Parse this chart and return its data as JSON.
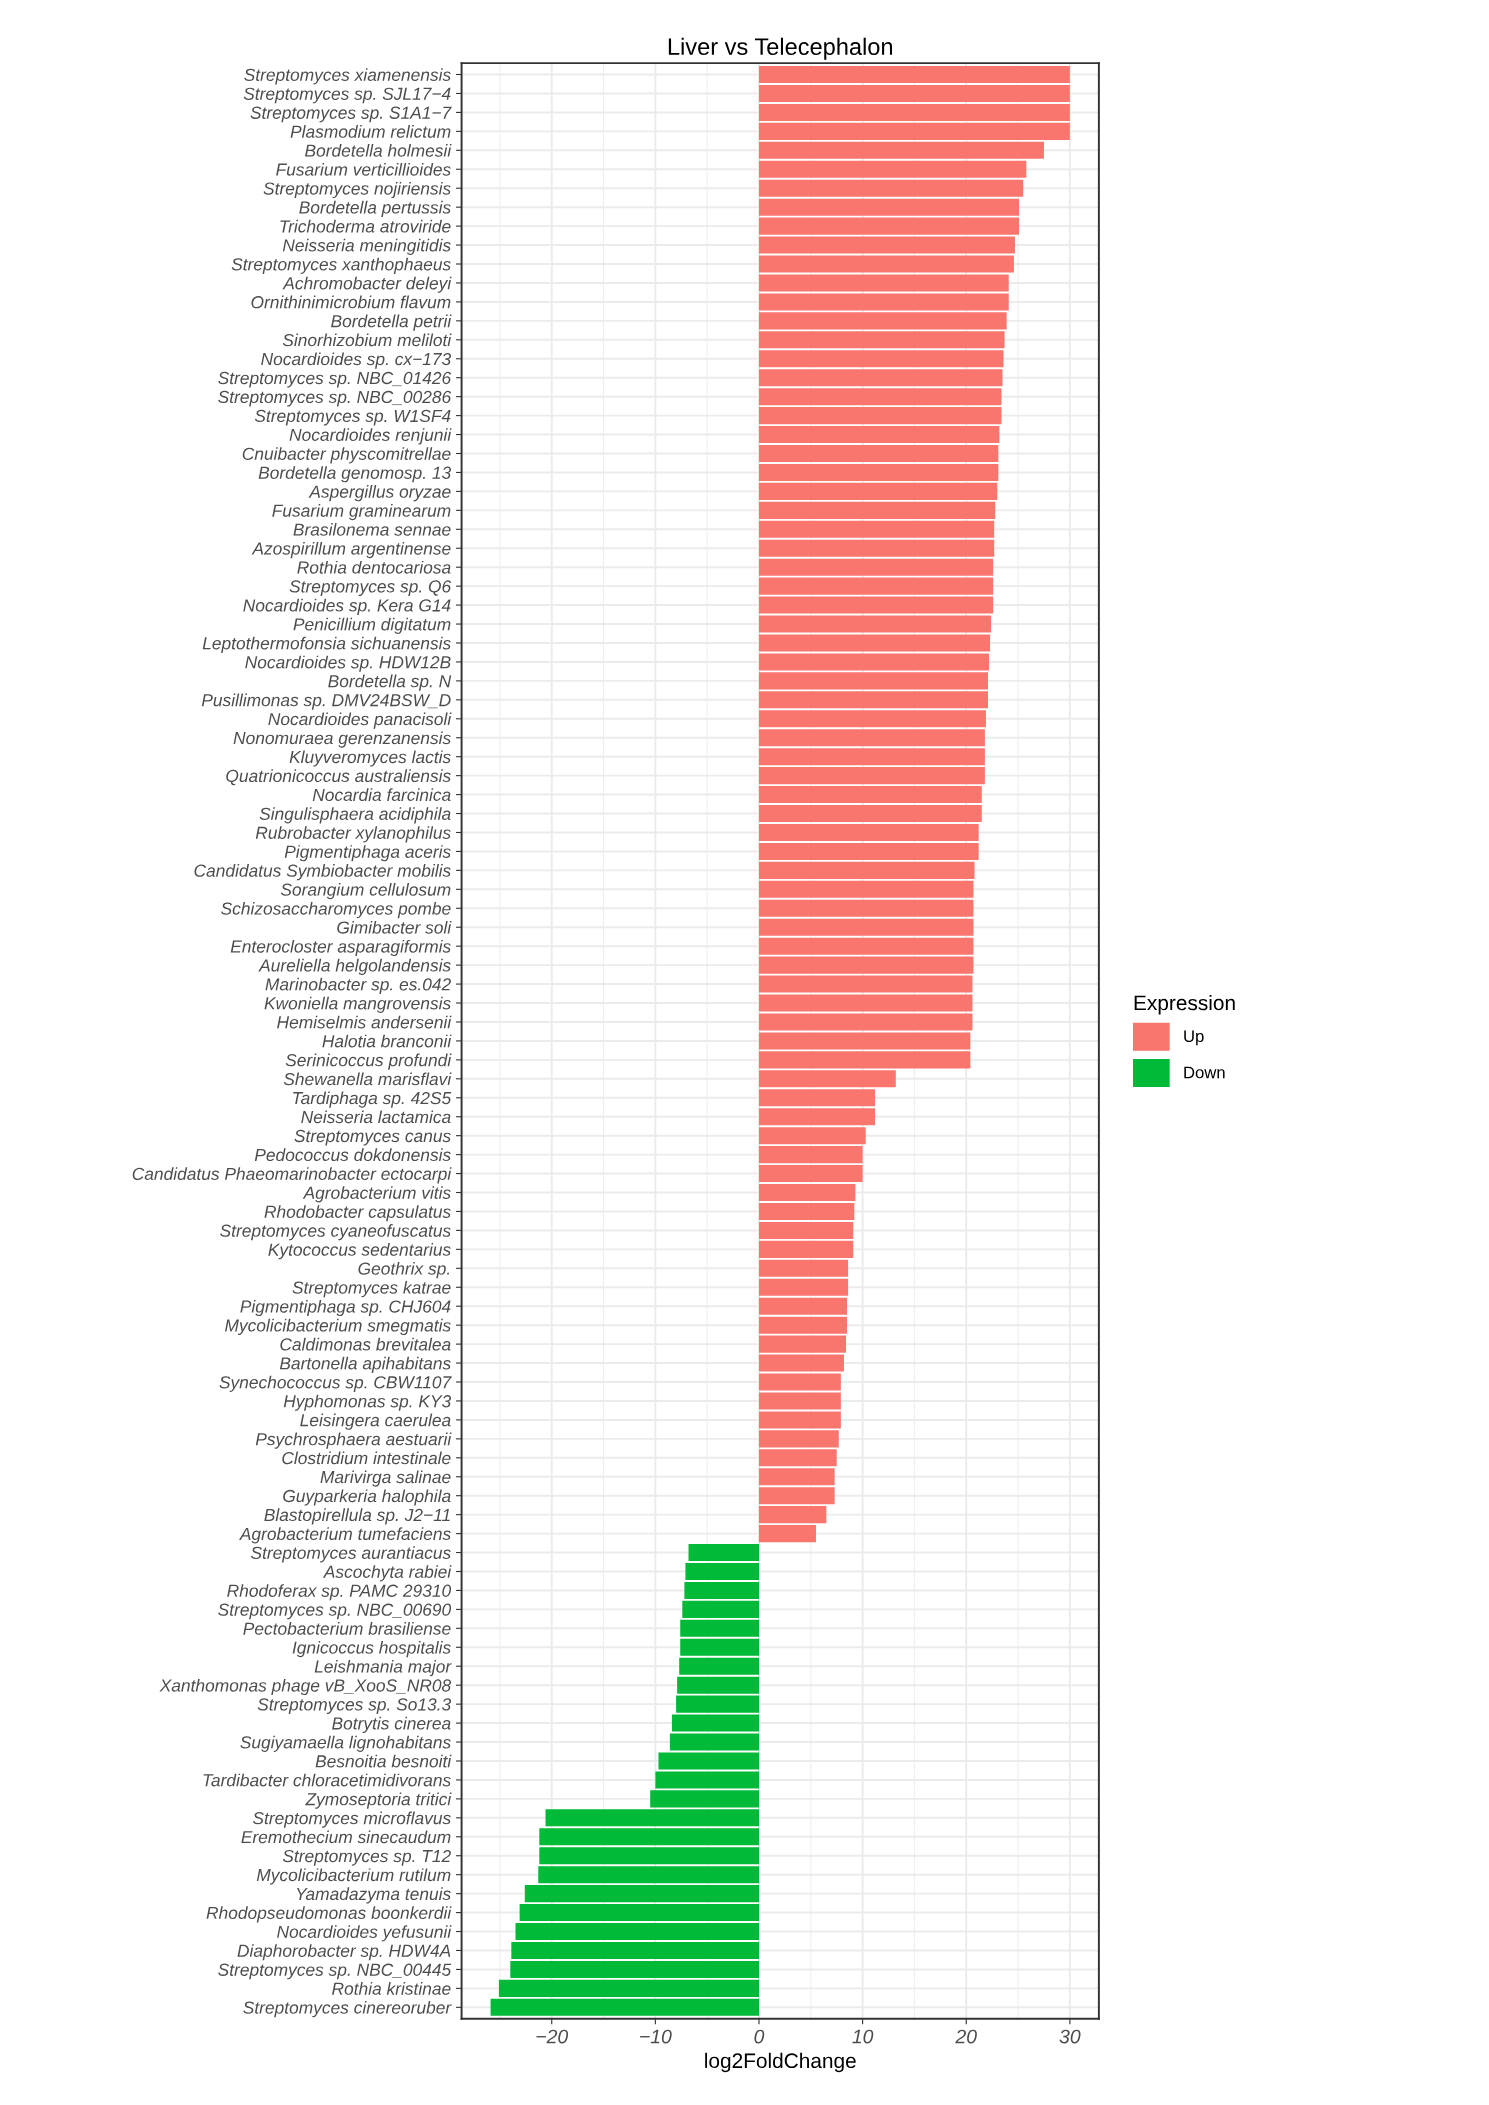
{
  "chart_data": {
    "type": "bar",
    "orientation": "horizontal",
    "title": "Liver vs Telecephalon",
    "xlabel": "log2FoldChange",
    "legend_title": "Expression",
    "legend": "right",
    "grid": true,
    "categories": [
      "Streptomyces xiamenensis",
      "Streptomyces sp. SJL17−4",
      "Streptomyces sp. S1A1−7",
      "Plasmodium relictum",
      "Bordetella holmesii",
      "Fusarium verticillioides",
      "Streptomyces nojiriensis",
      "Bordetella pertussis",
      "Trichoderma atroviride",
      "Neisseria meningitidis",
      "Streptomyces xanthophaeus",
      "Achromobacter deleyi",
      "Ornithinimicrobium flavum",
      "Bordetella petrii",
      "Sinorhizobium meliloti",
      "Nocardioides sp. cx−173",
      "Streptomyces sp. NBC_01426",
      "Streptomyces sp. NBC_00286",
      "Streptomyces sp. W1SF4",
      "Nocardioides renjunii",
      "Cnuibacter physcomitrellae",
      "Bordetella genomosp. 13",
      "Aspergillus oryzae",
      "Fusarium graminearum",
      "Brasilonema sennae",
      "Azospirillum argentinense",
      "Rothia dentocariosa",
      "Streptomyces sp. Q6",
      "Nocardioides sp. Kera G14",
      "Penicillium digitatum",
      "Leptothermofonsia sichuanensis",
      "Nocardioides sp. HDW12B",
      "Bordetella sp. N",
      "Pusillimonas sp. DMV24BSW_D",
      "Nocardioides panacisoli",
      "Nonomuraea gerenzanensis",
      "Kluyveromyces lactis",
      "Quatrionicoccus australiensis",
      "Nocardia farcinica",
      "Singulisphaera acidiphila",
      "Rubrobacter xylanophilus",
      "Pigmentiphaga aceris",
      "Candidatus Symbiobacter mobilis",
      "Sorangium cellulosum",
      "Schizosaccharomyces pombe",
      "Gimibacter soli",
      "Enterocloster asparagiformis",
      "Aureliella helgolandensis",
      "Marinobacter sp. es.042",
      "Kwoniella mangrovensis",
      "Hemiselmis andersenii",
      "Halotia branconii",
      "Serinicoccus profundi",
      "Shewanella marisflavi",
      "Tardiphaga sp. 42S5",
      "Neisseria lactamica",
      "Streptomyces canus",
      "Pedococcus dokdonensis",
      "Candidatus Phaeomarinobacter ectocarpi",
      "Agrobacterium vitis",
      "Rhodobacter capsulatus",
      "Streptomyces cyaneofuscatus",
      "Kytococcus sedentarius",
      "Geothrix sp.",
      "Streptomyces katrae",
      "Pigmentiphaga sp. CHJ604",
      "Mycolicibacterium smegmatis",
      "Caldimonas brevitalea",
      "Bartonella apihabitans",
      "Synechococcus sp. CBW1107",
      "Hyphomonas sp. KY3",
      "Leisingera caerulea",
      "Psychrosphaera aestuarii",
      "Clostridium intestinale",
      "Marivirga salinae",
      "Guyparkeria halophila",
      "Blastopirellula sp. J2−11",
      "Agrobacterium tumefaciens",
      "Streptomyces aurantiacus",
      "Ascochyta rabiei",
      "Rhodoferax sp. PAMC 29310",
      "Streptomyces sp. NBC_00690",
      "Pectobacterium brasiliense",
      "Ignicoccus hospitalis",
      "Leishmania major",
      "Xanthomonas phage vB_XooS_NR08",
      "Streptomyces sp. So13.3",
      "Botrytis cinerea",
      "Sugiyamaella lignohabitans",
      "Besnoitia besnoiti",
      "Tardibacter chloracetimidivorans",
      "Zymoseptoria tritici",
      "Streptomyces microflavus",
      "Eremothecium sinecaudum",
      "Streptomyces sp. T12",
      "Mycolicibacterium rutilum",
      "Yamadazyma tenuis",
      "Rhodopseudomonas boonkerdii",
      "Nocardioides yefusunii",
      "Diaphorobacter sp. HDW4A",
      "Streptomyces sp. NBC_00445",
      "Rothia kristinae",
      "Streptomyces cinereoruber"
    ],
    "series": [
      {
        "name": "Up",
        "color": "#f8766d",
        "values": [
          30.0,
          30.0,
          30.0,
          30.0,
          27.5,
          25.8,
          25.5,
          25.1,
          25.1,
          24.7,
          24.6,
          24.1,
          24.1,
          23.9,
          23.7,
          23.6,
          23.5,
          23.4,
          23.4,
          23.2,
          23.1,
          23.1,
          23.0,
          22.8,
          22.7,
          22.7,
          22.6,
          22.6,
          22.6,
          22.4,
          22.3,
          22.2,
          22.1,
          22.1,
          21.9,
          21.8,
          21.8,
          21.8,
          21.5,
          21.5,
          21.2,
          21.2,
          20.8,
          20.7,
          20.7,
          20.7,
          20.7,
          20.7,
          20.6,
          20.6,
          20.6,
          20.4,
          20.4,
          13.2,
          11.2,
          11.2,
          10.3,
          10.0,
          10.0,
          9.3,
          9.2,
          9.1,
          9.1,
          8.6,
          8.6,
          8.5,
          8.5,
          8.4,
          8.2,
          7.9,
          7.9,
          7.9,
          7.7,
          7.5,
          7.3,
          7.3,
          6.5,
          5.5,
          null,
          null,
          null,
          null,
          null,
          null,
          null,
          null,
          null,
          null,
          null,
          null,
          null,
          null,
          null,
          null,
          null,
          null,
          null,
          null,
          null,
          null,
          null,
          null,
          null
        ]
      },
      {
        "name": "Down",
        "color": "#00ba38",
        "values": [
          null,
          null,
          null,
          null,
          null,
          null,
          null,
          null,
          null,
          null,
          null,
          null,
          null,
          null,
          null,
          null,
          null,
          null,
          null,
          null,
          null,
          null,
          null,
          null,
          null,
          null,
          null,
          null,
          null,
          null,
          null,
          null,
          null,
          null,
          null,
          null,
          null,
          null,
          null,
          null,
          null,
          null,
          null,
          null,
          null,
          null,
          null,
          null,
          null,
          null,
          null,
          null,
          null,
          null,
          null,
          null,
          null,
          null,
          null,
          null,
          null,
          null,
          null,
          null,
          null,
          null,
          null,
          null,
          null,
          null,
          null,
          null,
          null,
          null,
          null,
          null,
          null,
          null,
          -6.8,
          -7.1,
          -7.2,
          -7.4,
          -7.6,
          -7.6,
          -7.7,
          -7.9,
          -8.0,
          -8.4,
          -8.6,
          -9.7,
          -10.0,
          -10.5,
          -20.6,
          -21.2,
          -21.2,
          -21.3,
          -22.6,
          -23.1,
          -23.5,
          -23.9,
          -24.0,
          -25.1,
          -25.9
        ]
      }
    ],
    "xlim": [
      -28.7,
      32.8
    ],
    "xticks": [
      {
        "value": -20,
        "label": "−20"
      },
      {
        "value": -10,
        "label": "−10"
      },
      0,
      10,
      20,
      30
    ]
  }
}
